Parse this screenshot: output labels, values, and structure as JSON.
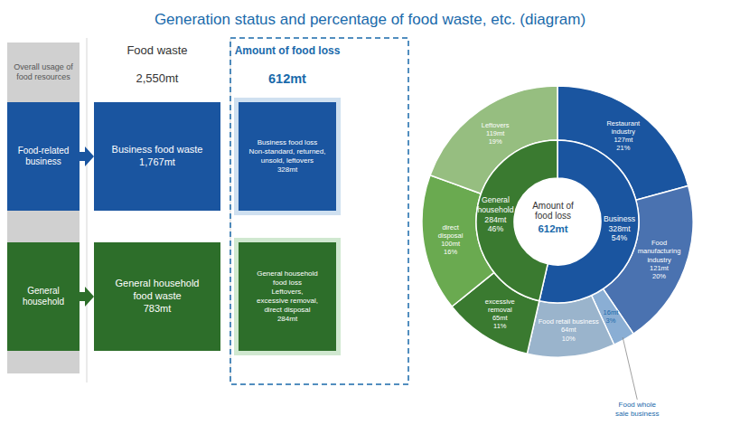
{
  "chart_data": {
    "type": "pie",
    "title": "Generation status and percentage of food waste, etc. (diagram)",
    "color": "#1a6aab",
    "center_labels": [
      "Amount of\nfood loss",
      "612mt"
    ],
    "series": [
      {
        "labels": [
          "Restaurant\nindustry\n127mt\n21%",
          "Food\nmanufacturing\nindustry\n121mt\n20%",
          "16mt\n3%",
          "Food retail business\n64mt\n10%",
          "excessive\nremoval\n65mt\n11%",
          "direct\ndisposal\n100mt\n16%",
          "Leftovers\n119mt\n19%"
        ],
        "values": [
          127,
          121,
          16,
          64,
          65,
          100,
          119
        ],
        "colors": [
          "#1a55a0",
          "#4a72b0",
          "#8aaed4",
          "#9ab4cc",
          "#3a7a30",
          "#6aaa50",
          "#96be80"
        ],
        "label_colors": [
          "#ffffff",
          "#ffffff",
          "#1a6aab",
          "#ffffff",
          "#ffffff",
          "#ffffff",
          "#ffffff"
        ],
        "callouts": [
          null,
          null,
          "Food whole\nsale business",
          null,
          null,
          null,
          null
        ]
      },
      {
        "labels": [
          "Business\n328mt\n54%",
          "General\nhousehold\n284mt\n46%"
        ],
        "values": [
          328,
          284
        ],
        "colors": [
          "#1a55a0",
          "#3a7a30"
        ],
        "label_colors": [
          "#ffffff",
          "#ffffff"
        ]
      }
    ],
    "diagram": {
      "overall": {
        "text": "Overall usage of\nfood resources",
        "color": "#d0d0d0"
      },
      "header_waste": [
        "Food waste",
        "2,550mt"
      ],
      "header_loss": [
        "Amount of food loss",
        "612mt"
      ],
      "rows": [
        {
          "source": "Food-related\nbusiness",
          "waste": "Business food waste\n1,767mt",
          "loss": "Business food loss\nNon-standard, returned,\nunsold, leftovers\n328mt",
          "color": "#1a55a0",
          "loss_background": "#cfe0f0"
        },
        {
          "source": "General\nhousehold",
          "waste": "General household\nfood waste\n783mt",
          "loss": "General household\nfood loss\nLeftovers,\nexcessive removal,\ndirect disposal\n284mt",
          "color": "#2d6e2a",
          "loss_background": "#d0e8d0"
        }
      ]
    }
  }
}
